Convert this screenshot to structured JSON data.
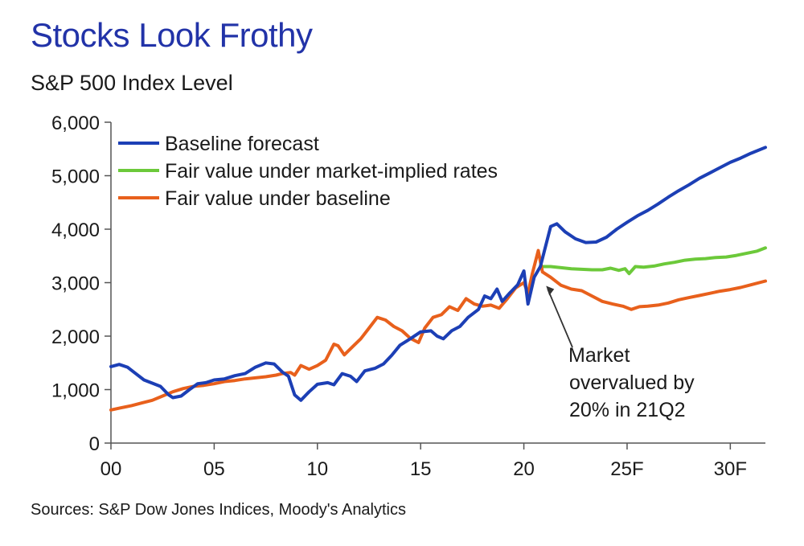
{
  "chart_data": {
    "type": "line",
    "title": "Stocks Look Frothy",
    "subtitle": "S&P 500 Index Level",
    "source": "Sources: S&P Dow Jones Indices, Moody's Analytics",
    "xlabel": "",
    "ylabel": "",
    "xlim": [
      2000,
      2031.7
    ],
    "ylim": [
      0,
      6000
    ],
    "x_ticks": [
      {
        "x": 2000,
        "label": "00"
      },
      {
        "x": 2005,
        "label": "05"
      },
      {
        "x": 2010,
        "label": "10"
      },
      {
        "x": 2015,
        "label": "15"
      },
      {
        "x": 2020,
        "label": "20"
      },
      {
        "x": 2025,
        "label": "25F"
      },
      {
        "x": 2030,
        "label": "30F"
      }
    ],
    "y_ticks": [
      {
        "y": 0,
        "label": "0"
      },
      {
        "y": 1000,
        "label": "1,000"
      },
      {
        "y": 2000,
        "label": "2,000"
      },
      {
        "y": 3000,
        "label": "3,000"
      },
      {
        "y": 4000,
        "label": "4,000"
      },
      {
        "y": 5000,
        "label": "5,000"
      },
      {
        "y": 6000,
        "label": "6,000"
      }
    ],
    "legend_position": "top-left",
    "series": [
      {
        "name": "Baseline forecast",
        "color": "#1c3fb5",
        "points": [
          [
            2000.0,
            1430
          ],
          [
            2000.4,
            1470
          ],
          [
            2000.8,
            1420
          ],
          [
            2001.2,
            1300
          ],
          [
            2001.6,
            1180
          ],
          [
            2002.0,
            1120
          ],
          [
            2002.4,
            1060
          ],
          [
            2002.8,
            900
          ],
          [
            2003.0,
            850
          ],
          [
            2003.4,
            880
          ],
          [
            2003.8,
            1000
          ],
          [
            2004.2,
            1110
          ],
          [
            2004.6,
            1130
          ],
          [
            2005.0,
            1180
          ],
          [
            2005.5,
            1200
          ],
          [
            2006.0,
            1260
          ],
          [
            2006.5,
            1300
          ],
          [
            2007.0,
            1420
          ],
          [
            2007.5,
            1500
          ],
          [
            2007.9,
            1480
          ],
          [
            2008.3,
            1330
          ],
          [
            2008.6,
            1250
          ],
          [
            2008.9,
            900
          ],
          [
            2009.2,
            800
          ],
          [
            2009.6,
            960
          ],
          [
            2010.0,
            1100
          ],
          [
            2010.5,
            1130
          ],
          [
            2010.8,
            1090
          ],
          [
            2011.2,
            1300
          ],
          [
            2011.6,
            1250
          ],
          [
            2011.9,
            1150
          ],
          [
            2012.3,
            1350
          ],
          [
            2012.8,
            1400
          ],
          [
            2013.2,
            1480
          ],
          [
            2013.6,
            1640
          ],
          [
            2014.0,
            1830
          ],
          [
            2014.5,
            1950
          ],
          [
            2015.0,
            2080
          ],
          [
            2015.5,
            2100
          ],
          [
            2015.8,
            2000
          ],
          [
            2016.1,
            1950
          ],
          [
            2016.5,
            2100
          ],
          [
            2016.9,
            2180
          ],
          [
            2017.3,
            2350
          ],
          [
            2017.8,
            2500
          ],
          [
            2018.1,
            2750
          ],
          [
            2018.4,
            2700
          ],
          [
            2018.7,
            2880
          ],
          [
            2018.95,
            2650
          ],
          [
            2019.3,
            2800
          ],
          [
            2019.7,
            2960
          ],
          [
            2020.0,
            3220
          ],
          [
            2020.2,
            2600
          ],
          [
            2020.5,
            3100
          ],
          [
            2020.8,
            3300
          ],
          [
            2021.0,
            3600
          ],
          [
            2021.3,
            4050
          ],
          [
            2021.6,
            4100
          ],
          [
            2022.0,
            3950
          ],
          [
            2022.5,
            3820
          ],
          [
            2023.0,
            3750
          ],
          [
            2023.5,
            3760
          ],
          [
            2024.0,
            3850
          ],
          [
            2024.5,
            4000
          ],
          [
            2025.0,
            4130
          ],
          [
            2025.5,
            4250
          ],
          [
            2026.0,
            4350
          ],
          [
            2026.5,
            4470
          ],
          [
            2027.0,
            4600
          ],
          [
            2027.5,
            4720
          ],
          [
            2028.0,
            4830
          ],
          [
            2028.5,
            4950
          ],
          [
            2029.0,
            5050
          ],
          [
            2029.5,
            5150
          ],
          [
            2030.0,
            5250
          ],
          [
            2030.5,
            5330
          ],
          [
            2031.0,
            5420
          ],
          [
            2031.7,
            5530
          ]
        ]
      },
      {
        "name": "Fair value under market-implied rates",
        "color": "#6cc93a",
        "points": [
          [
            2020.8,
            3300
          ],
          [
            2021.3,
            3300
          ],
          [
            2021.8,
            3280
          ],
          [
            2022.3,
            3260
          ],
          [
            2022.8,
            3250
          ],
          [
            2023.3,
            3240
          ],
          [
            2023.8,
            3240
          ],
          [
            2024.2,
            3270
          ],
          [
            2024.6,
            3230
          ],
          [
            2024.9,
            3260
          ],
          [
            2025.1,
            3170
          ],
          [
            2025.4,
            3300
          ],
          [
            2025.8,
            3290
          ],
          [
            2026.3,
            3310
          ],
          [
            2026.8,
            3350
          ],
          [
            2027.3,
            3380
          ],
          [
            2027.8,
            3420
          ],
          [
            2028.3,
            3440
          ],
          [
            2028.8,
            3450
          ],
          [
            2029.3,
            3470
          ],
          [
            2029.8,
            3480
          ],
          [
            2030.3,
            3510
          ],
          [
            2030.8,
            3550
          ],
          [
            2031.3,
            3590
          ],
          [
            2031.7,
            3650
          ]
        ]
      },
      {
        "name": "Fair value under baseline",
        "color": "#e8601c",
        "points": [
          [
            2000.0,
            620
          ],
          [
            2000.5,
            660
          ],
          [
            2001.0,
            700
          ],
          [
            2001.5,
            750
          ],
          [
            2002.0,
            800
          ],
          [
            2002.5,
            880
          ],
          [
            2003.0,
            960
          ],
          [
            2003.5,
            1020
          ],
          [
            2004.0,
            1060
          ],
          [
            2004.5,
            1080
          ],
          [
            2005.0,
            1110
          ],
          [
            2005.5,
            1150
          ],
          [
            2006.0,
            1170
          ],
          [
            2006.5,
            1200
          ],
          [
            2007.0,
            1220
          ],
          [
            2007.5,
            1240
          ],
          [
            2008.0,
            1270
          ],
          [
            2008.3,
            1300
          ],
          [
            2008.7,
            1320
          ],
          [
            2008.9,
            1270
          ],
          [
            2009.2,
            1450
          ],
          [
            2009.6,
            1380
          ],
          [
            2010.0,
            1450
          ],
          [
            2010.4,
            1550
          ],
          [
            2010.8,
            1850
          ],
          [
            2011.0,
            1820
          ],
          [
            2011.3,
            1650
          ],
          [
            2011.7,
            1800
          ],
          [
            2012.1,
            1950
          ],
          [
            2012.5,
            2150
          ],
          [
            2012.9,
            2350
          ],
          [
            2013.3,
            2300
          ],
          [
            2013.7,
            2180
          ],
          [
            2014.1,
            2100
          ],
          [
            2014.5,
            1960
          ],
          [
            2014.9,
            1880
          ],
          [
            2015.2,
            2150
          ],
          [
            2015.6,
            2350
          ],
          [
            2016.0,
            2400
          ],
          [
            2016.4,
            2550
          ],
          [
            2016.8,
            2480
          ],
          [
            2017.2,
            2700
          ],
          [
            2017.6,
            2600
          ],
          [
            2018.0,
            2560
          ],
          [
            2018.4,
            2580
          ],
          [
            2018.8,
            2520
          ],
          [
            2019.2,
            2700
          ],
          [
            2019.6,
            2900
          ],
          [
            2020.0,
            3000
          ],
          [
            2020.2,
            2800
          ],
          [
            2020.4,
            3150
          ],
          [
            2020.7,
            3600
          ],
          [
            2020.9,
            3200
          ],
          [
            2021.3,
            3100
          ],
          [
            2021.8,
            2950
          ],
          [
            2022.3,
            2880
          ],
          [
            2022.8,
            2850
          ],
          [
            2023.3,
            2750
          ],
          [
            2023.8,
            2650
          ],
          [
            2024.3,
            2600
          ],
          [
            2024.8,
            2560
          ],
          [
            2025.2,
            2500
          ],
          [
            2025.6,
            2550
          ],
          [
            2026.0,
            2560
          ],
          [
            2026.5,
            2580
          ],
          [
            2027.0,
            2620
          ],
          [
            2027.5,
            2680
          ],
          [
            2028.0,
            2720
          ],
          [
            2028.5,
            2760
          ],
          [
            2029.0,
            2800
          ],
          [
            2029.5,
            2840
          ],
          [
            2030.0,
            2870
          ],
          [
            2030.5,
            2910
          ],
          [
            2031.0,
            2960
          ],
          [
            2031.7,
            3030
          ]
        ]
      }
    ],
    "annotations": [
      {
        "lines": [
          "Market",
          "overvalued by",
          "20% in 21Q2"
        ],
        "points_to": [
          2021.0,
          3000
        ]
      }
    ]
  }
}
